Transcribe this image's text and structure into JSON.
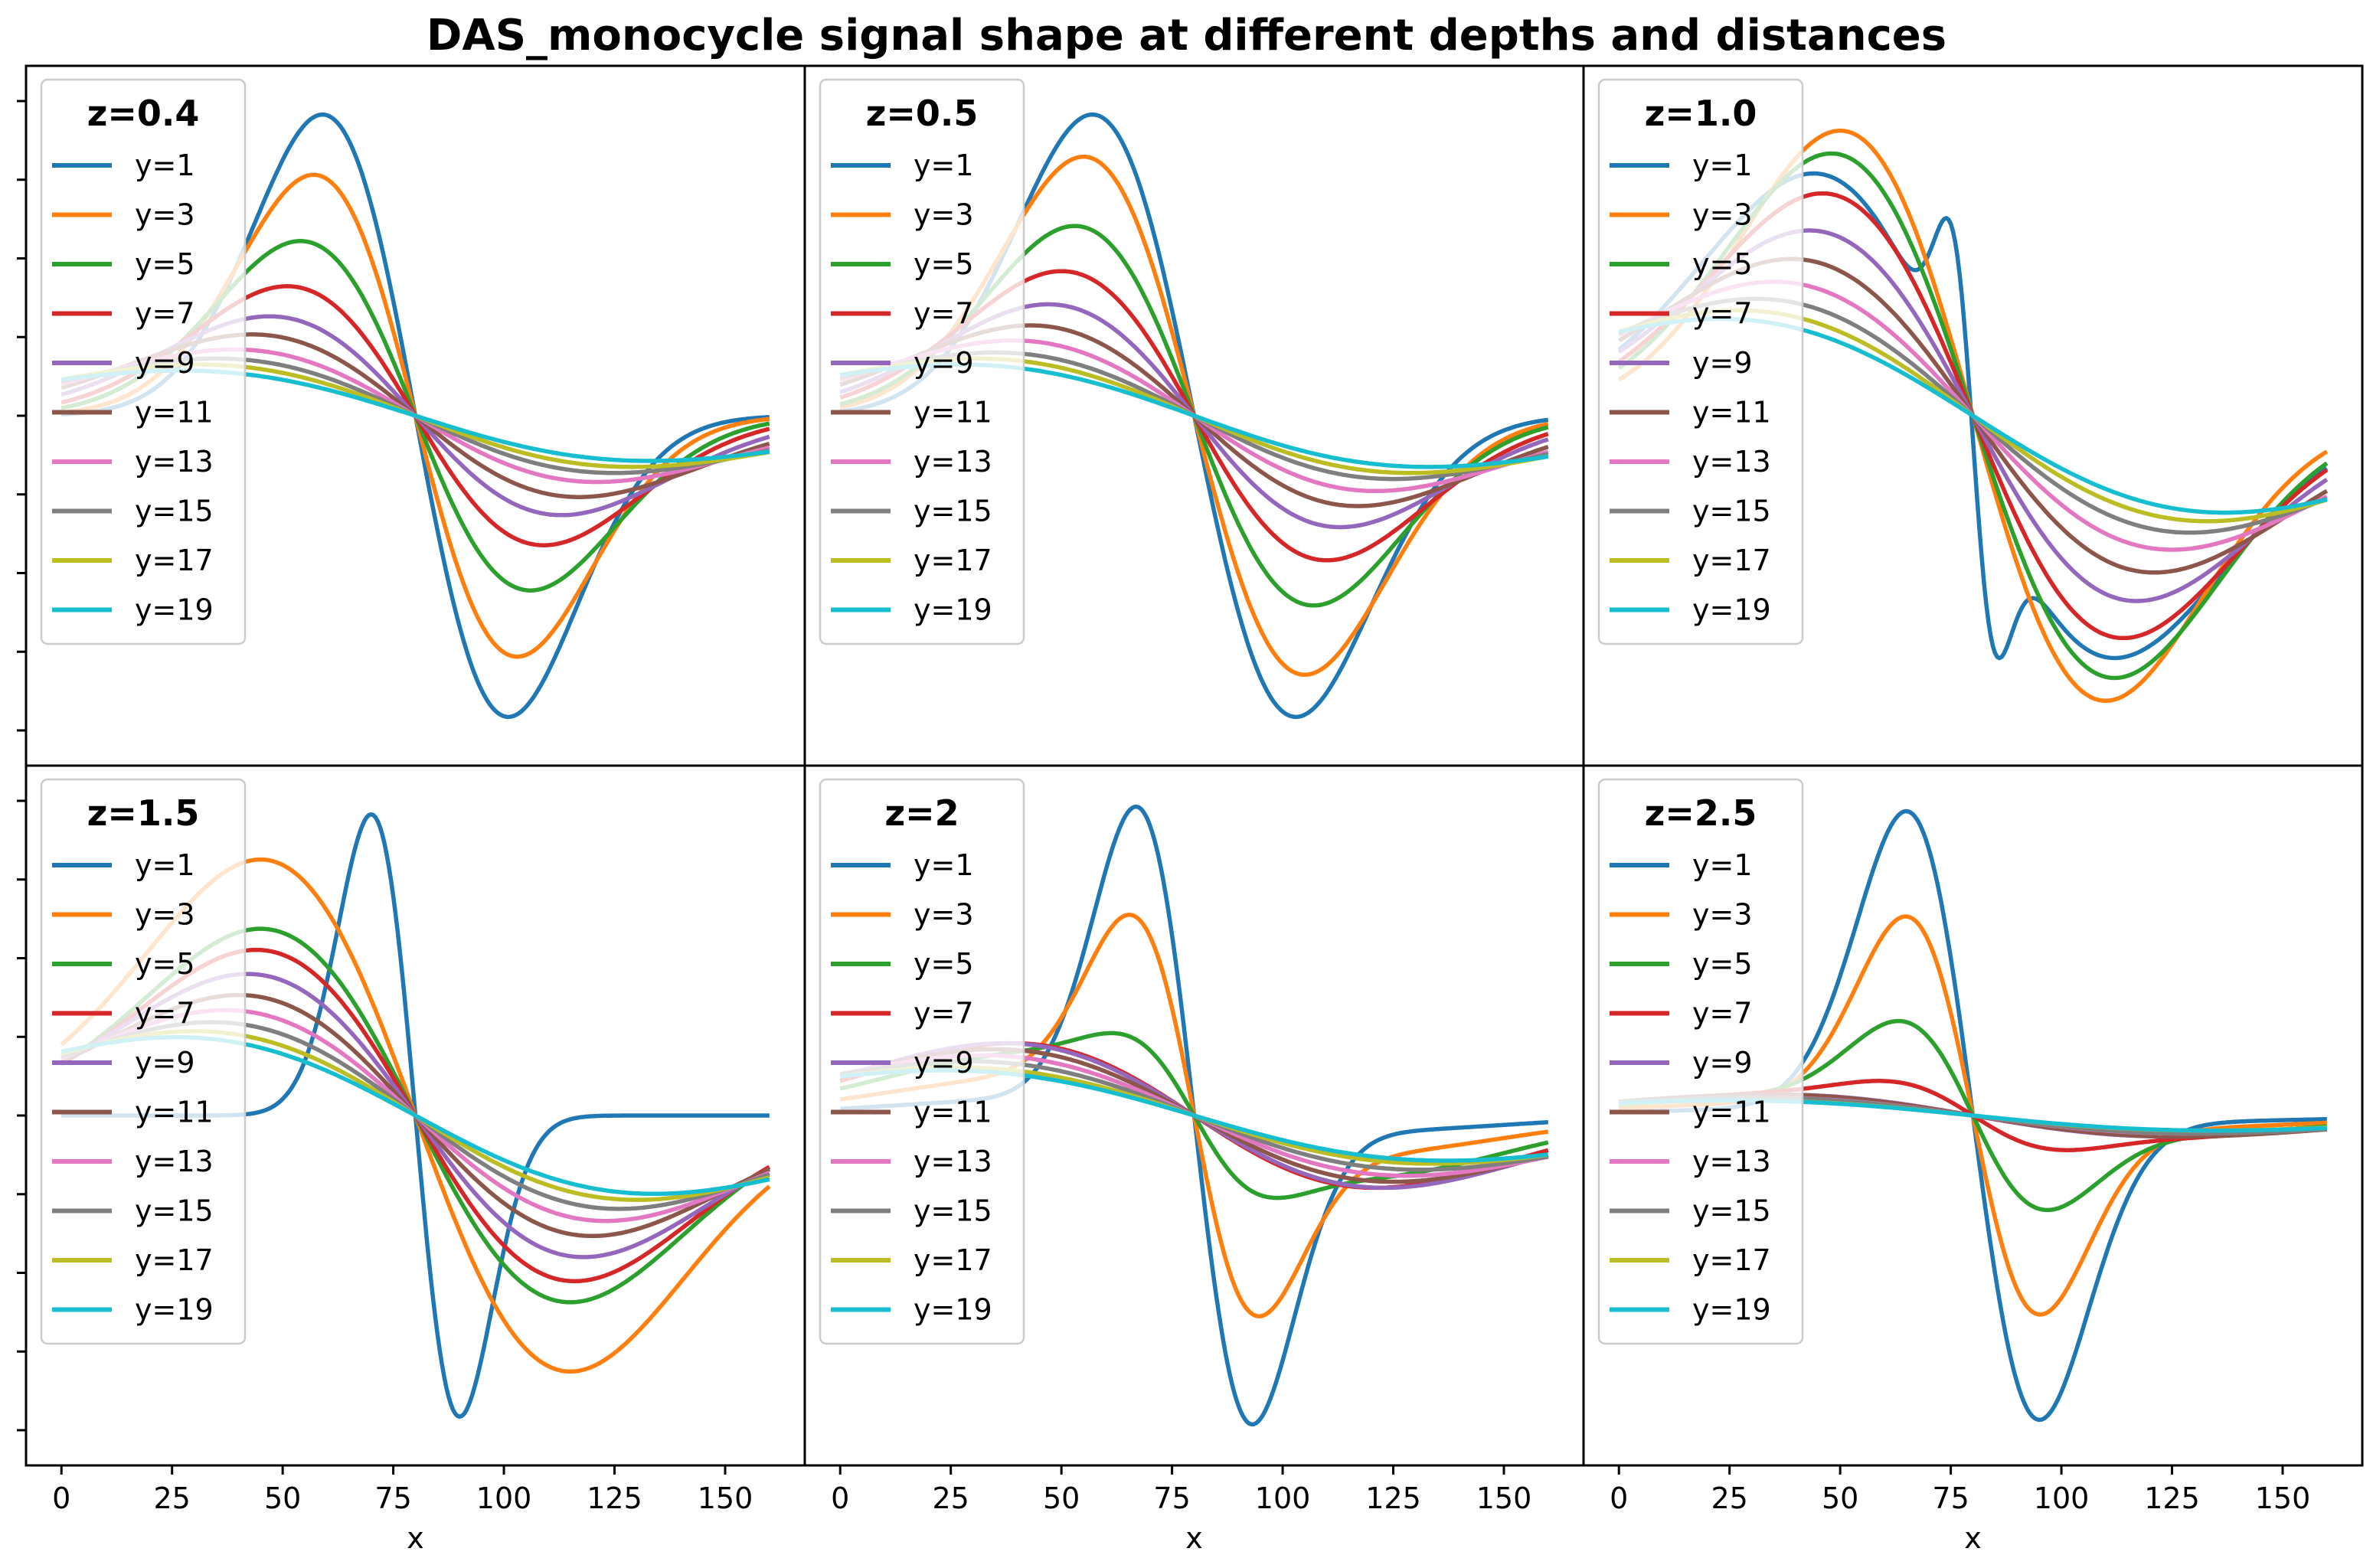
{
  "chart_data": {
    "type": "line",
    "title": "DAS_monocycle signal shape at different depths and distances",
    "xlabel": "x",
    "ylabel": "",
    "xlim": [
      -8,
      168
    ],
    "xticks": [
      0,
      25,
      50,
      75,
      100,
      125,
      150
    ],
    "grid": false,
    "legend_position": "upper-left",
    "series_names": [
      "y=1",
      "y=3",
      "y=5",
      "y=7",
      "y=9",
      "y=11",
      "y=13",
      "y=15",
      "y=17",
      "y=19"
    ],
    "colors": [
      "#1f77b4",
      "#ff7f0e",
      "#2ca02c",
      "#d62728",
      "#9467bd",
      "#8c564b",
      "#e377c2",
      "#7f7f7f",
      "#bcbd22",
      "#17becf"
    ],
    "panels": [
      {
        "title": "z=0.4",
        "kind": "mono",
        "amplitude": [
          -1.0,
          -0.8,
          -0.58,
          -0.43,
          -0.33,
          -0.27,
          -0.22,
          -0.19,
          -0.17,
          -0.15
        ],
        "center": [
          80,
          80,
          80,
          80,
          80,
          80,
          80,
          80,
          80,
          80
        ],
        "width": [
          21,
          23,
          26,
          29,
          33,
          37,
          41,
          45,
          49,
          53
        ],
        "ylim": [
          -1.06,
          1.06
        ]
      },
      {
        "title": "z=0.5",
        "kind": "mono",
        "amplitude": [
          -1.0,
          -0.86,
          -0.63,
          -0.48,
          -0.37,
          -0.3,
          -0.25,
          -0.21,
          -0.19,
          -0.17
        ],
        "center": [
          80,
          80,
          80,
          80,
          80,
          80,
          80,
          80,
          80,
          80
        ],
        "width": [
          23,
          25,
          27,
          30,
          33,
          37,
          41,
          45,
          49,
          53
        ],
        "ylim": [
          -1.06,
          1.06
        ]
      },
      {
        "title": "z=1.0",
        "kind": "mono",
        "amplitude": [
          -0.85,
          -1.0,
          -0.92,
          -0.78,
          -0.65,
          -0.55,
          -0.47,
          -0.41,
          -0.37,
          -0.34
        ],
        "center": [
          78,
          80,
          80,
          80,
          80,
          80,
          80,
          80,
          80,
          80
        ],
        "width": [
          34,
          30,
          32,
          34,
          37,
          41,
          45,
          49,
          53,
          57
        ],
        "ylim": [
          -1.12,
          1.12
        ],
        "blue_wiggle": {
          "amplitude": -0.55,
          "center": 80,
          "width": 5
        }
      },
      {
        "title": "z=1.5",
        "kind": "mono_blue_pulse",
        "amplitude": [
          0,
          -0.85,
          -0.62,
          -0.55,
          -0.47,
          -0.4,
          -0.35,
          -0.31,
          -0.28,
          -0.26
        ],
        "center": [
          80,
          80,
          80,
          80,
          80,
          80,
          80,
          80,
          80,
          80
        ],
        "width": [
          0,
          35,
          35,
          36,
          38,
          40,
          43,
          46,
          50,
          54
        ],
        "blue_pulse": {
          "amplitude": -1.0,
          "center": 80,
          "width": 10
        },
        "ylim": [
          -1.06,
          1.06
        ]
      },
      {
        "title": "z=2",
        "kind": "pulse_plus_mono",
        "pulse_amplitude": [
          -1.0,
          -0.6,
          -0.15,
          0,
          0,
          0,
          0,
          0,
          0,
          0
        ],
        "pulse_center": [
          80,
          80,
          80,
          80,
          80,
          80,
          80,
          80,
          80,
          80
        ],
        "pulse_width": [
          13,
          14,
          14,
          14,
          14,
          14,
          14,
          14,
          14,
          14
        ],
        "amplitude": [
          -0.05,
          -0.12,
          -0.2,
          -0.24,
          -0.24,
          -0.22,
          -0.2,
          -0.18,
          -0.16,
          -0.15
        ],
        "center": [
          80,
          80,
          80,
          80,
          80,
          80,
          80,
          80,
          80,
          80
        ],
        "width": [
          40,
          40,
          40,
          41,
          43,
          45,
          48,
          51,
          54,
          57
        ],
        "ylim": [
          -1.06,
          1.06
        ]
      },
      {
        "title": "z=2.5",
        "kind": "pulse_plus_mono",
        "pulse_amplitude": [
          -1.0,
          -0.64,
          -0.28,
          -0.07,
          0,
          0,
          0,
          0,
          0,
          0
        ],
        "pulse_center": [
          80,
          80,
          80,
          80,
          80,
          80,
          80,
          80,
          80,
          80
        ],
        "pulse_width": [
          15,
          15,
          16,
          17,
          17,
          17,
          17,
          17,
          17,
          17
        ],
        "amplitude": [
          -0.02,
          -0.04,
          -0.06,
          -0.07,
          -0.07,
          -0.07,
          -0.06,
          -0.06,
          -0.05,
          -0.05
        ],
        "center": [
          80,
          80,
          80,
          80,
          80,
          80,
          80,
          80,
          80,
          80
        ],
        "width": [
          45,
          45,
          45,
          45,
          45,
          47,
          49,
          51,
          53,
          55
        ],
        "ylim": [
          -1.06,
          1.06
        ]
      }
    ]
  }
}
